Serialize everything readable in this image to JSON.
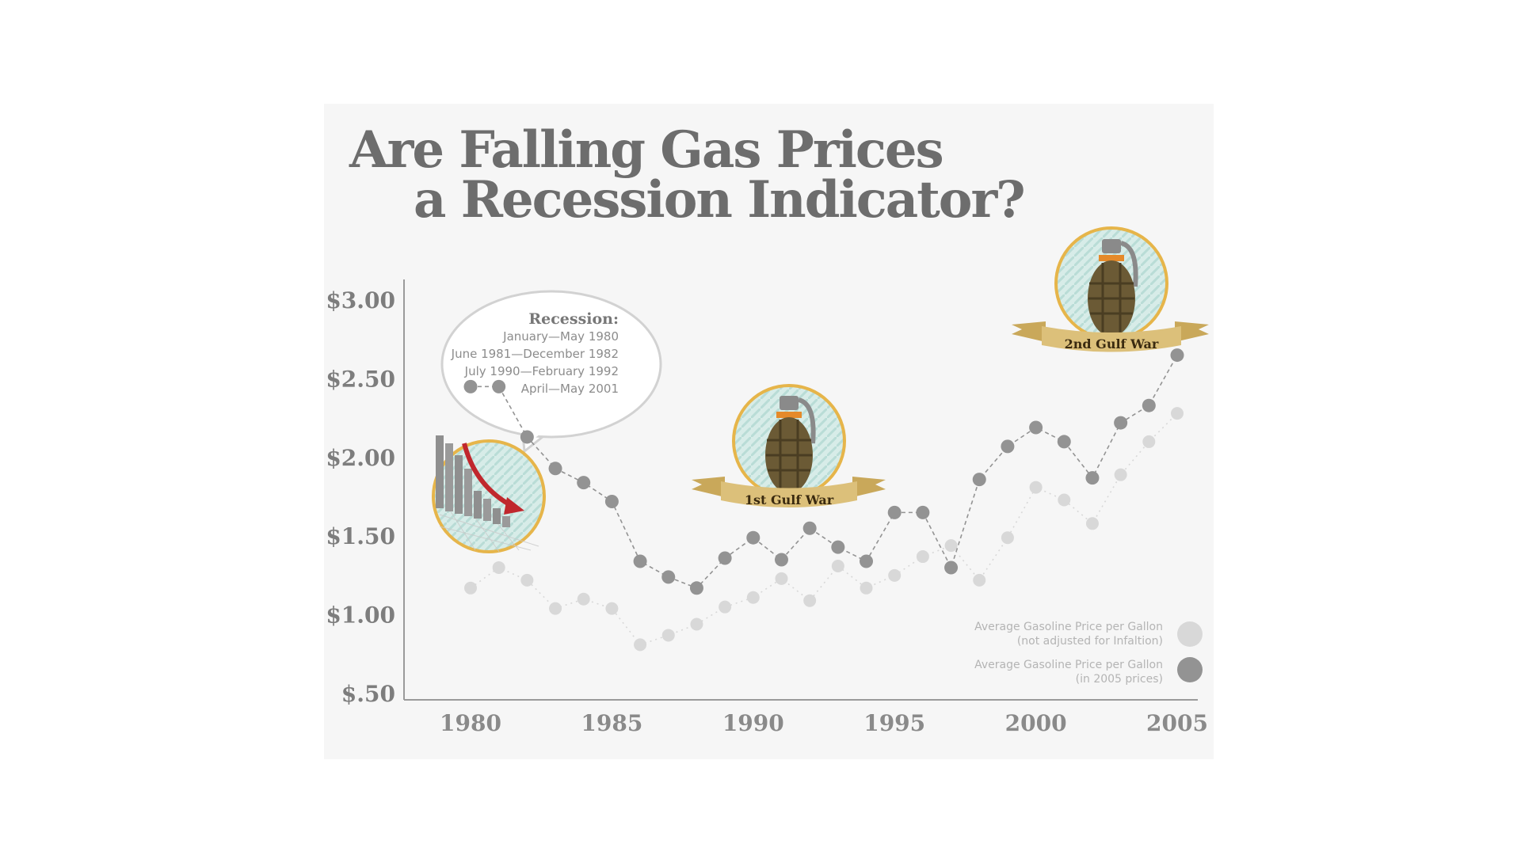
{
  "title": {
    "line1": "Are Falling Gas Prices",
    "line2": "a Recession Indicator?"
  },
  "recession_note": {
    "heading": "Recession:",
    "periods": [
      "January—May 1980",
      "June 1981—December 1982",
      "July 1990—February 1992",
      "April—May 2001"
    ]
  },
  "annotations": [
    {
      "label": "1st Gulf War",
      "year": 1990.5,
      "icon": "grenade-icon"
    },
    {
      "label": "2nd Gulf War",
      "year": 2003.1,
      "icon": "grenade-icon"
    }
  ],
  "recession_badge_icon": "falling-bar-chart-icon",
  "colors": {
    "panel": "#f6f6f6",
    "title": "#6d6d6d",
    "series_2005": "#939393",
    "series_nominal": "#d8d8d8",
    "badge_ring": "#e6b54a",
    "badge_bg": "#d7ece8",
    "banner": "#dcc07a",
    "arrow": "#c0272d"
  },
  "chart_data": {
    "type": "line",
    "title": "Are Falling Gas Prices a Recession Indicator?",
    "xlabel": "",
    "ylabel": "",
    "x": [
      1980,
      1981,
      1982,
      1983,
      1984,
      1985,
      1986,
      1987,
      1988,
      1989,
      1990,
      1991,
      1992,
      1993,
      1994,
      1995,
      1996,
      1997,
      1998,
      1999,
      2000,
      2001,
      2002,
      2003,
      2004,
      2005
    ],
    "xticks": [
      "1980",
      "1985",
      "1990",
      "1995",
      "2000",
      "2005"
    ],
    "yticks": [
      "$.50",
      "$1.00",
      "$1.50",
      "$2.00",
      "$2.50",
      "$3.00"
    ],
    "ylim": [
      0.5,
      3.0
    ],
    "xlim": [
      1980,
      2005
    ],
    "series": [
      {
        "name": "Average Gasoline Price per Gallon (in 2005 prices)",
        "style": "dashed",
        "values": [
          2.45,
          2.45,
          2.13,
          1.93,
          1.84,
          1.72,
          1.34,
          1.24,
          1.17,
          1.36,
          1.49,
          1.35,
          1.55,
          1.43,
          1.34,
          1.65,
          1.65,
          1.3,
          1.86,
          2.07,
          2.19,
          2.1,
          1.87,
          2.22,
          2.33,
          2.65
        ]
      },
      {
        "name": "Average Gasoline Price per Gallon (not adjusted for Infaltion)",
        "style": "dotted",
        "values": [
          1.17,
          1.3,
          1.22,
          1.04,
          1.1,
          1.04,
          0.81,
          0.87,
          0.94,
          1.05,
          1.11,
          1.23,
          1.09,
          1.31,
          1.17,
          1.25,
          1.37,
          1.44,
          1.22,
          1.49,
          1.81,
          1.73,
          1.58,
          1.89,
          2.1,
          2.28
        ]
      }
    ],
    "legend": {
      "placement": "bottom-right",
      "entries": [
        {
          "line1": "Average Gasoline Price per Gallon",
          "line2": "(not adjusted for Infaltion)",
          "color": "#d8d8d8"
        },
        {
          "line1": "Average Gasoline Price per Gallon",
          "line2": "(in 2005 prices)",
          "color": "#939393"
        }
      ]
    },
    "grid": false
  }
}
